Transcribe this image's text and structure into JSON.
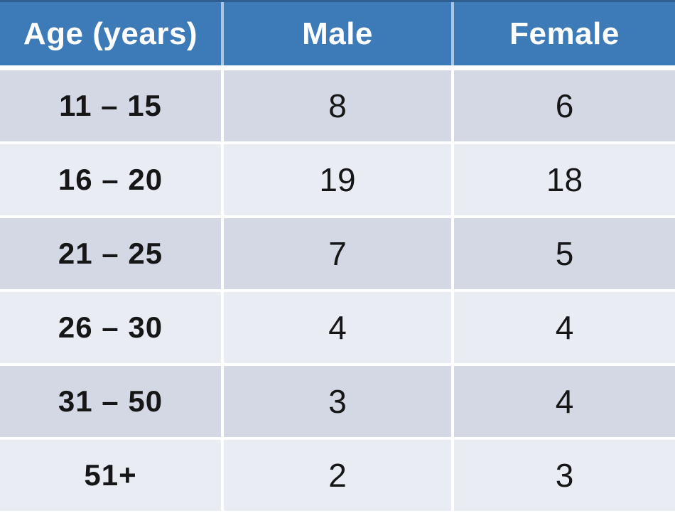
{
  "table": {
    "columns": [
      "Age (years)",
      "Male",
      "Female"
    ],
    "rows": [
      {
        "age": "11 – 15",
        "male": "8",
        "female": "6"
      },
      {
        "age": "16 – 20",
        "male": "19",
        "female": "18"
      },
      {
        "age": "21 – 25",
        "male": "7",
        "female": "5"
      },
      {
        "age": "26 – 30",
        "male": "4",
        "female": "4"
      },
      {
        "age": "31 – 50",
        "male": "3",
        "female": "4"
      },
      {
        "age": "51+",
        "male": "2",
        "female": "3"
      }
    ]
  },
  "chart_data": {
    "type": "table",
    "title": "",
    "columns": [
      "Age (years)",
      "Male",
      "Female"
    ],
    "rows": [
      [
        "11 – 15",
        8,
        6
      ],
      [
        "16 – 20",
        19,
        18
      ],
      [
        "21 – 25",
        7,
        5
      ],
      [
        "26 – 30",
        4,
        4
      ],
      [
        "31 – 50",
        3,
        4
      ],
      [
        "51+",
        2,
        3
      ]
    ],
    "layout_hints": {
      "header_style": "blue bar, white bold text",
      "row_striping": "alternating dark/light lavender-gray starting dark",
      "first_column_bold": true
    }
  },
  "colors": {
    "header_bg": "#3d7ab8",
    "header_text": "#ffffff",
    "header_divider": "#a9c6e2",
    "top_border": "#2e5f93",
    "row_dark": "#d4d7e4",
    "row_light": "#eaecf4",
    "body_text": "#161616",
    "separator": "#ffffff"
  }
}
